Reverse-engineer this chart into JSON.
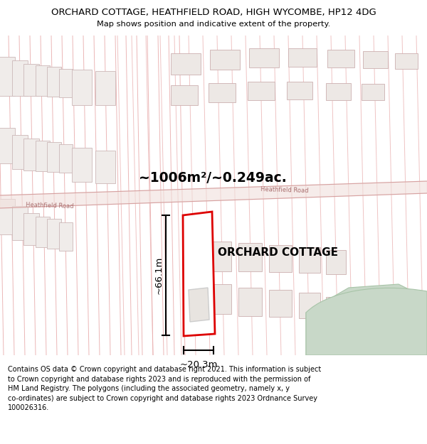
{
  "title": "ORCHARD COTTAGE, HEATHFIELD ROAD, HIGH WYCOMBE, HP12 4DG",
  "subtitle": "Map shows position and indicative extent of the property.",
  "map_bg": "#f7f5f2",
  "footer_bg": "#dde8e0",
  "footer_text": "Contains OS data © Crown copyright and database right 2021. This information is subject to Crown copyright and database rights 2023 and is reproduced with the permission of HM Land Registry. The polygons (including the associated geometry, namely x, y co-ordinates) are subject to Crown copyright and database rights 2023 Ordnance Survey 100026316.",
  "area_text": "~1006m²/~0.249ac.",
  "property_label": "ORCHARD COTTAGE",
  "dim_width": "~20.3m",
  "dim_height": "~66.1m",
  "road_label_left": "Heathfield Road",
  "road_label_right": "Heathfield Road",
  "line_color": "#e8aaaa",
  "road_color": "#cc9090",
  "prop_color": "#dd0000",
  "inner_color": "#e8e4e0",
  "green_color": "#c8d8c8",
  "plot_line_color": "#e0b0b0"
}
